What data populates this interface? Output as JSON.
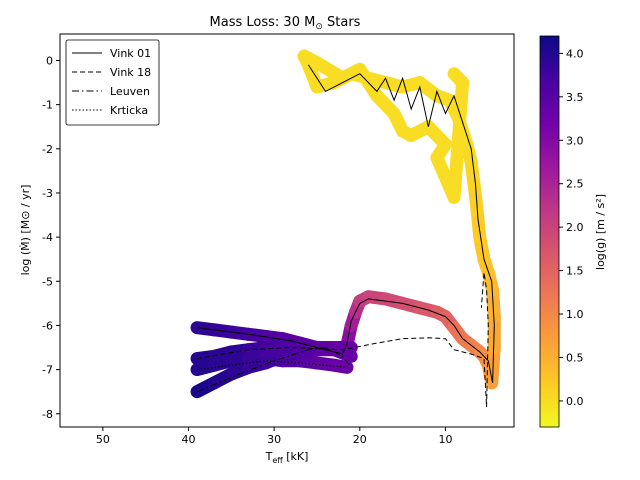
{
  "chart_data": {
    "type": "line",
    "title_main": "Mass Loss: 30 M",
    "title_sub": "⊙",
    "title_end": " Stars",
    "xlabel_main": "T",
    "xlabel_sub": "eff",
    "xlabel_end": " [kK]",
    "ylabel": "log (Ṁ) [M⊙ / yr]",
    "colorbar_label": "log(g) [m / s²]",
    "xlim": [
      55,
      2
    ],
    "ylim": [
      -8.3,
      0.6
    ],
    "x_ticks": [
      50,
      40,
      30,
      20,
      10
    ],
    "y_ticks": [
      0,
      -1,
      -2,
      -3,
      -4,
      -5,
      -6,
      -7,
      -8
    ],
    "colorbar_range": [
      -0.3,
      4.2
    ],
    "colorbar_ticks": [
      0.0,
      0.5,
      1.0,
      1.5,
      2.0,
      2.5,
      3.0,
      3.5,
      4.0
    ],
    "colormap": [
      "#f0f921",
      "#fdca26",
      "#fb9f3a",
      "#ed7953",
      "#d8576b",
      "#bd3786",
      "#9c179e",
      "#7201a8",
      "#46039f",
      "#0d0887"
    ],
    "legend_position": "upper-left",
    "grid": false,
    "series": [
      {
        "name": "Vink 01",
        "dash": "solid",
        "points": [
          [
            39,
            -6.05
          ],
          [
            33,
            -6.2
          ],
          [
            28,
            -6.35
          ],
          [
            25,
            -6.5
          ],
          [
            22,
            -6.65
          ],
          [
            21.5,
            -6.4
          ],
          [
            21,
            -5.9
          ],
          [
            20,
            -5.5
          ],
          [
            19,
            -5.4
          ],
          [
            15,
            -5.5
          ],
          [
            12,
            -5.65
          ],
          [
            10,
            -5.8
          ],
          [
            9,
            -6.0
          ],
          [
            8,
            -6.3
          ],
          [
            6,
            -6.6
          ],
          [
            5,
            -6.8
          ],
          [
            4.5,
            -7.3
          ],
          [
            4.3,
            -6.0
          ],
          [
            4.6,
            -5.0
          ],
          [
            5.5,
            -4.5
          ],
          [
            6.2,
            -3.6
          ],
          [
            6.5,
            -2.8
          ],
          [
            7,
            -2.0
          ],
          [
            8,
            -1.4
          ],
          [
            9,
            -0.8
          ],
          [
            10,
            -1.2
          ],
          [
            11,
            -0.7
          ],
          [
            12,
            -1.5
          ],
          [
            13,
            -0.6
          ],
          [
            14,
            -1.1
          ],
          [
            15,
            -0.4
          ],
          [
            16,
            -0.9
          ],
          [
            17,
            -0.4
          ],
          [
            18,
            -0.7
          ],
          [
            20,
            -0.3
          ],
          [
            22,
            -0.5
          ],
          [
            24,
            -0.7
          ],
          [
            26,
            -0.1
          ]
        ]
      },
      {
        "name": "Vink 18",
        "dash": "dashed",
        "points": [
          [
            39,
            -6.75
          ],
          [
            33,
            -6.55
          ],
          [
            28,
            -6.5
          ],
          [
            22,
            -6.55
          ],
          [
            18,
            -6.4
          ],
          [
            15,
            -6.3
          ],
          [
            12,
            -6.28
          ],
          [
            10,
            -6.3
          ],
          [
            9,
            -6.55
          ],
          [
            7,
            -6.65
          ],
          [
            5.5,
            -6.75
          ],
          [
            5.2,
            -7.85
          ],
          [
            5,
            -6.0
          ],
          [
            5.2,
            -5.2
          ],
          [
            5.5,
            -4.8
          ],
          [
            5.8,
            -5.6
          ]
        ]
      },
      {
        "name": "Leuven",
        "dash": "dashdot",
        "points": [
          [
            39,
            -7.5
          ],
          [
            34,
            -7.1
          ],
          [
            30,
            -6.8
          ],
          [
            26,
            -6.55
          ],
          [
            24,
            -6.5
          ],
          [
            22,
            -6.7
          ],
          [
            21,
            -6.95
          ]
        ]
      },
      {
        "name": "Krticka",
        "dash": "dotted",
        "points": [
          [
            39,
            -7.0
          ],
          [
            35,
            -6.9
          ],
          [
            31,
            -6.8
          ],
          [
            27,
            -6.85
          ],
          [
            24,
            -6.9
          ],
          [
            21.5,
            -6.95
          ]
        ]
      }
    ],
    "color_bands": [
      {
        "points": [
          [
            39,
            -6.05
          ],
          [
            37,
            -6.1
          ],
          [
            35,
            -6.15
          ],
          [
            33,
            -6.2
          ],
          [
            31,
            -6.25
          ],
          [
            29,
            -6.3
          ],
          [
            27,
            -6.4
          ],
          [
            25,
            -6.5
          ],
          [
            23,
            -6.55
          ],
          [
            22,
            -6.6
          ],
          [
            21.5,
            -6.45
          ],
          [
            21,
            -6.0
          ],
          [
            20.5,
            -5.7
          ],
          [
            20,
            -5.45
          ],
          [
            19,
            -5.35
          ],
          [
            17,
            -5.4
          ],
          [
            15,
            -5.5
          ],
          [
            13,
            -5.6
          ],
          [
            11,
            -5.7
          ],
          [
            10,
            -5.8
          ],
          [
            9,
            -6.05
          ],
          [
            8,
            -6.3
          ],
          [
            7,
            -6.45
          ],
          [
            6,
            -6.6
          ],
          [
            5.5,
            -6.7
          ],
          [
            5,
            -6.9
          ],
          [
            4.6,
            -7.3
          ],
          [
            4.3,
            -6.5
          ],
          [
            4.3,
            -5.8
          ],
          [
            4.5,
            -5.2
          ],
          [
            5,
            -4.8
          ],
          [
            5.5,
            -4.5
          ],
          [
            6,
            -4.0
          ],
          [
            6.3,
            -3.4
          ],
          [
            6.6,
            -2.9
          ],
          [
            7,
            -2.3
          ],
          [
            7.5,
            -1.9
          ],
          [
            8.5,
            -1.3
          ],
          [
            9.5,
            -0.9
          ]
        ],
        "logg": [
          3.9,
          3.85,
          3.8,
          3.7,
          3.6,
          3.5,
          3.4,
          3.3,
          3.2,
          3.1,
          2.9,
          2.6,
          2.3,
          2.1,
          2.0,
          1.9,
          1.8,
          1.7,
          1.6,
          1.5,
          1.3,
          1.2,
          1.1,
          1.0,
          0.9,
          0.8,
          0.7,
          0.6,
          0.5,
          0.4,
          0.3,
          0.25,
          0.2,
          0.15,
          0.1,
          0.05,
          0.0,
          0.0,
          0.0
        ]
      },
      {
        "points": [
          [
            9.5,
            -0.9
          ],
          [
            11,
            -0.8
          ],
          [
            13,
            -0.5
          ],
          [
            15,
            -0.6
          ],
          [
            17,
            -0.5
          ],
          [
            19,
            -0.4
          ],
          [
            21,
            -0.3
          ],
          [
            23,
            -0.5
          ],
          [
            25,
            -0.6
          ],
          [
            26,
            -0.1
          ],
          [
            26.5,
            0.1
          ],
          [
            25,
            -0.05
          ],
          [
            22,
            -0.4
          ],
          [
            20,
            -0.2
          ],
          [
            18,
            -0.8
          ],
          [
            16,
            -1.2
          ],
          [
            15,
            -1.6
          ],
          [
            14,
            -1.7
          ],
          [
            12,
            -1.5
          ],
          [
            10,
            -1.9
          ],
          [
            11,
            -2.2
          ],
          [
            9,
            -3.1
          ],
          [
            8,
            -0.5
          ],
          [
            9,
            -0.3
          ]
        ],
        "logg": [
          0,
          0,
          0,
          0,
          0,
          0,
          0,
          0,
          0,
          0,
          0,
          0,
          0,
          0,
          0,
          0,
          0,
          0,
          0,
          0,
          0,
          0,
          0,
          0
        ]
      },
      {
        "points": [
          [
            39,
            -6.75
          ],
          [
            37,
            -6.7
          ],
          [
            35,
            -6.6
          ],
          [
            33,
            -6.55
          ],
          [
            31,
            -6.5
          ],
          [
            29,
            -6.45
          ],
          [
            27,
            -6.45
          ],
          [
            25,
            -6.5
          ],
          [
            23,
            -6.5
          ],
          [
            21,
            -6.5
          ]
        ],
        "logg": [
          4.0,
          3.95,
          3.9,
          3.8,
          3.7,
          3.6,
          3.5,
          3.4,
          3.3,
          3.2
        ]
      },
      {
        "points": [
          [
            39,
            -7.0
          ],
          [
            37,
            -6.9
          ],
          [
            35,
            -6.8
          ],
          [
            33,
            -6.75
          ],
          [
            31,
            -6.75
          ],
          [
            29,
            -6.8
          ],
          [
            27,
            -6.8
          ],
          [
            25,
            -6.85
          ],
          [
            23,
            -6.9
          ],
          [
            21.5,
            -6.95
          ]
        ],
        "logg": [
          4.0,
          3.95,
          3.9,
          3.8,
          3.7,
          3.6,
          3.5,
          3.4,
          3.3,
          3.2
        ]
      },
      {
        "points": [
          [
            39,
            -7.5
          ],
          [
            37,
            -7.3
          ],
          [
            35,
            -7.1
          ],
          [
            33,
            -6.95
          ],
          [
            31,
            -6.85
          ],
          [
            29,
            -6.7
          ],
          [
            27,
            -6.6
          ],
          [
            25,
            -6.55
          ],
          [
            23,
            -6.55
          ],
          [
            21,
            -6.7
          ]
        ],
        "logg": [
          4.1,
          4.0,
          3.95,
          3.85,
          3.75,
          3.65,
          3.55,
          3.45,
          3.35,
          3.25
        ]
      }
    ]
  }
}
